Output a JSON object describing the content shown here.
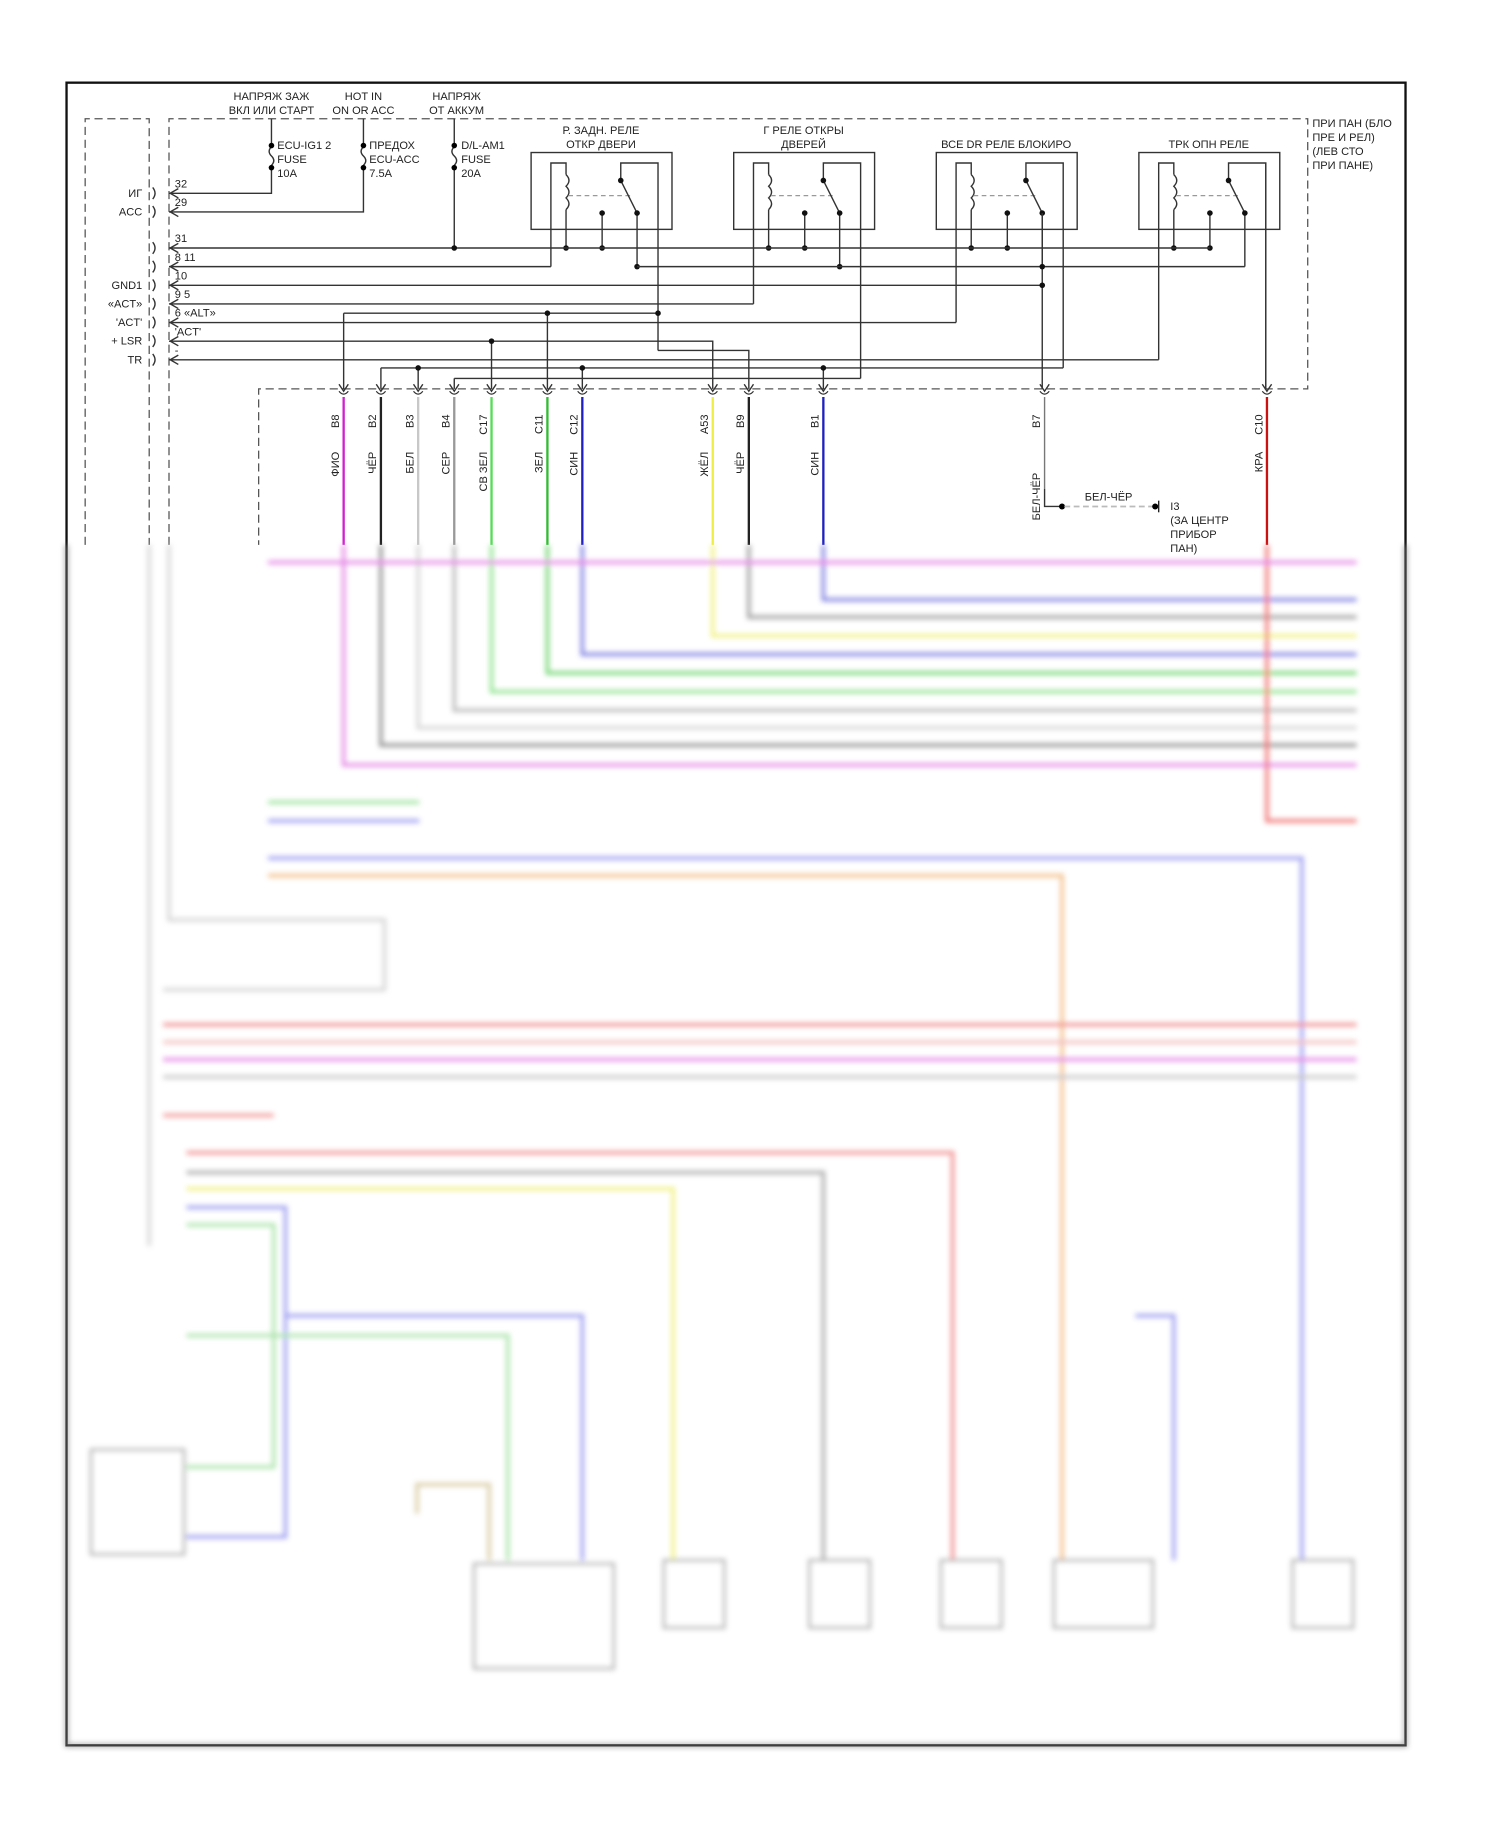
{
  "supply_labels": [
    {
      "line1": "НАПРЯЖ ЗАЖ",
      "line2": "ВКЛ ИЛИ СТАРТ"
    },
    {
      "line1": "HOT IN",
      "line2": "ON OR ACC"
    },
    {
      "line1": "НАПРЯЖ",
      "line2": "ОТ АККУМ"
    }
  ],
  "fuses": [
    {
      "line1": "ECU-IG1 2",
      "line2": "FUSE",
      "line3": "10A"
    },
    {
      "line1": "ПРЕДОХ",
      "line2": "ECU-ACC",
      "line3": "7.5A"
    },
    {
      "line1": "D/L-AM1",
      "line2": "FUSE",
      "line3": "20A"
    }
  ],
  "relays": [
    {
      "line1": "Р. ЗАДН. РЕЛЕ",
      "line2": "ОТКР ДВЕРИ"
    },
    {
      "line1": "Г РЕЛЕ ОТКРЫ",
      "line2": "ДВЕРЕЙ"
    },
    {
      "line1": "",
      "line2": "ВСЕ DR РЕЛЕ БЛОКИРО"
    },
    {
      "line1": "",
      "line2": "ТРК ОПН РЕЛЕ"
    }
  ],
  "junction_block": {
    "line1": "ПРИ ПАН (БЛО",
    "line2": "ПРЕ И РЕЛ)",
    "line3": "(ЛЕВ СТО",
    "line4": "ПРИ ПАНЕ)"
  },
  "ecu_pins": [
    {
      "name": "ИГ",
      "pin": "32"
    },
    {
      "name": "ACC",
      "pin": "29"
    },
    {
      "name": "",
      "pin": "31"
    },
    {
      "name": "",
      "pin": "8 11"
    },
    {
      "name": "GND1",
      "pin": "10"
    },
    {
      "name": "«ACT»",
      "pin": "9 5"
    },
    {
      "name": "'ACT'",
      "pin": "6 «ALT»"
    },
    {
      "name": "+ LSR",
      "pin": "'ACT'"
    },
    {
      "name": "TR",
      "pin": "-"
    }
  ],
  "connector_wires": [
    {
      "pin": "B8",
      "color_label": "ФИО",
      "color": "#d020d0"
    },
    {
      "pin": "B2",
      "color_label": "ЧЁР",
      "color": "#222222"
    },
    {
      "pin": "B3",
      "color_label": "БЕЛ",
      "color": "#c8c8c8"
    },
    {
      "pin": "B4",
      "color_label": "СЕР",
      "color": "#999999"
    },
    {
      "pin": "C17",
      "color_label": "СВ ЗЕЛ",
      "color": "#55dd55"
    },
    {
      "pin": "C11",
      "color_label": "ЗЕЛ",
      "color": "#33bb33"
    },
    {
      "pin": "C12",
      "color_label": "СИН",
      "color": "#2020c0"
    },
    {
      "pin": "A53",
      "color_label": "ЖЁЛ",
      "color": "#eeee44"
    },
    {
      "pin": "B9",
      "color_label": "ЧЁР",
      "color": "#222222"
    },
    {
      "pin": "B1",
      "color_label": "СИН",
      "color": "#2020c0"
    },
    {
      "pin": "B7",
      "color_label": "БЕЛ-ЧЁР",
      "color": "#777777"
    },
    {
      "pin": "C10",
      "color_label": "КРА",
      "color": "#cc1111"
    }
  ],
  "ground": {
    "wire_label": "БЕЛ-ЧЁР",
    "id": "I3",
    "line1": "(ЗА ЦЕНТР",
    "line2": "ПРИБОР",
    "line3": "ПАН)"
  }
}
